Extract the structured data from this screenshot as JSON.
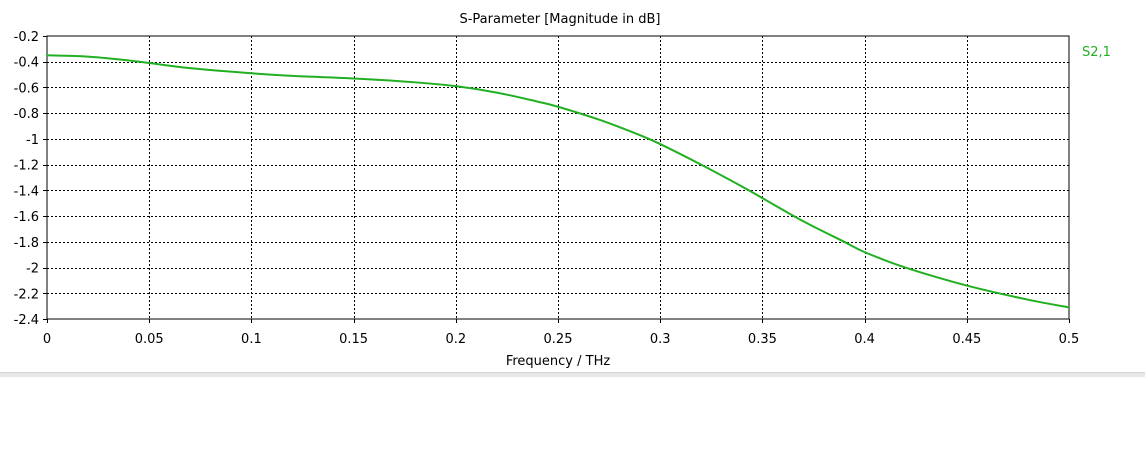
{
  "colors": {
    "background": "#ffffff",
    "grid": "#000000",
    "axis": "#000000",
    "series_s21": "#22b022"
  },
  "chart_data": {
    "type": "line",
    "title": "S-Parameter [Magnitude in dB]",
    "xlabel": "Frequency / THz",
    "ylabel": "",
    "xlim": [
      0,
      0.5
    ],
    "ylim": [
      -2.4,
      -0.2
    ],
    "grid": true,
    "grid_style": "dotted",
    "legend": "right-top label",
    "x_ticks": [
      "0",
      "0.05",
      "0.1",
      "0.15",
      "0.2",
      "0.25",
      "0.3",
      "0.35",
      "0.4",
      "0.45",
      "0.5"
    ],
    "y_ticks": [
      "-0.2",
      "-0.4",
      "-0.6",
      "-0.8",
      "-1",
      "-1.2",
      "-1.4",
      "-1.6",
      "-1.8",
      "-2",
      "-2.2",
      "-2.4"
    ],
    "series": [
      {
        "name": "S2,1",
        "color": "#22b022",
        "x": [
          0,
          0.02,
          0.04,
          0.05,
          0.07,
          0.1,
          0.12,
          0.15,
          0.18,
          0.2,
          0.22,
          0.24,
          0.25,
          0.27,
          0.29,
          0.3,
          0.32,
          0.34,
          0.35,
          0.37,
          0.39,
          0.4,
          0.42,
          0.45,
          0.48,
          0.5
        ],
        "y": [
          -0.35,
          -0.36,
          -0.39,
          -0.41,
          -0.45,
          -0.49,
          -0.51,
          -0.53,
          -0.56,
          -0.59,
          -0.64,
          -0.71,
          -0.75,
          -0.85,
          -0.97,
          -1.04,
          -1.2,
          -1.37,
          -1.46,
          -1.64,
          -1.8,
          -1.88,
          -2.0,
          -2.14,
          -2.25,
          -2.31
        ]
      }
    ]
  }
}
